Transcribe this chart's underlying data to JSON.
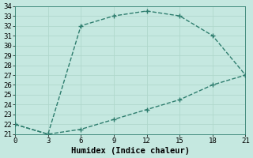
{
  "line1_x": [
    0,
    3,
    6,
    9,
    12,
    15,
    18,
    21
  ],
  "line1_y": [
    22,
    21,
    32,
    33,
    33.5,
    33,
    31,
    27
  ],
  "line2_x": [
    0,
    3,
    6,
    9,
    12,
    15,
    18,
    21
  ],
  "line2_y": [
    22,
    21,
    21.5,
    22.5,
    23.5,
    24.5,
    26,
    27
  ],
  "line_color": "#2e7d6e",
  "marker": "+",
  "marker_size": 4,
  "marker_lw": 1.0,
  "xlabel": "Humidex (Indice chaleur)",
  "xlim": [
    0,
    21
  ],
  "ylim": [
    21,
    34
  ],
  "xticks": [
    0,
    3,
    6,
    9,
    12,
    15,
    18,
    21
  ],
  "yticks": [
    21,
    22,
    23,
    24,
    25,
    26,
    27,
    28,
    29,
    30,
    31,
    32,
    33,
    34
  ],
  "bg_color": "#c5e8e0",
  "grid_color": "#b0d8cc",
  "tick_fontsize": 6.5,
  "xlabel_fontsize": 7.5,
  "line_width": 1.0
}
